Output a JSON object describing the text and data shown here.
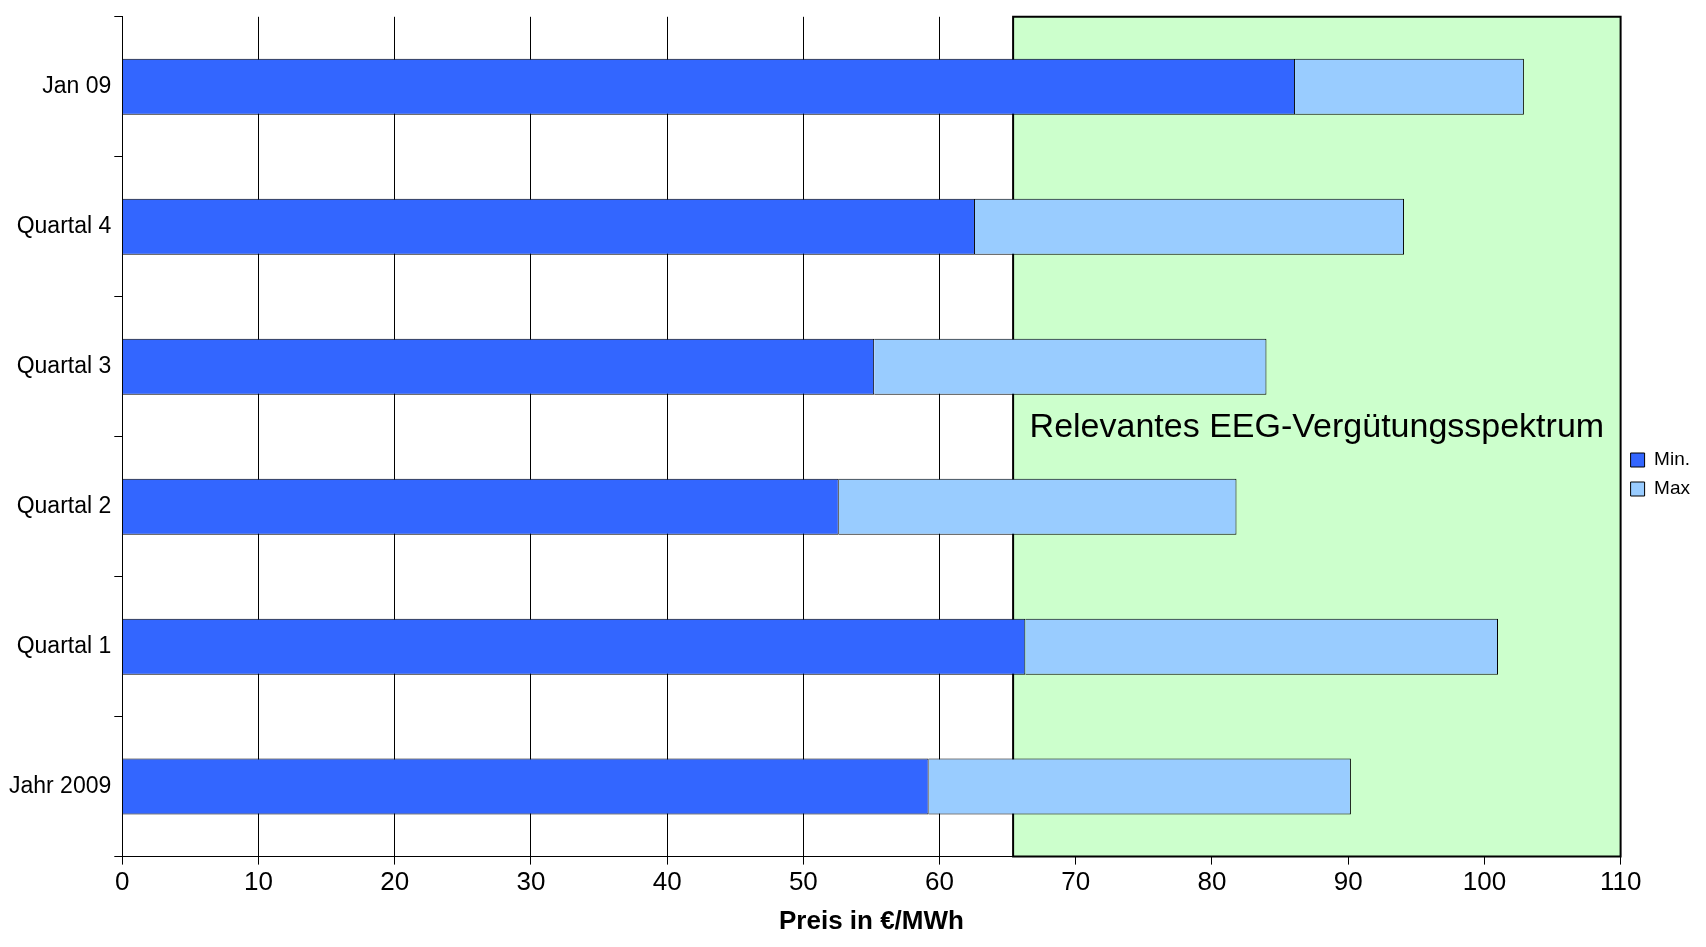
{
  "chart_data": {
    "type": "bar",
    "orientation": "horizontal",
    "stacked": true,
    "xlabel": "Preis in €/MWh",
    "categories": [
      "Jan 09",
      "Quartal 4",
      "Quartal 3",
      "Quartal 2",
      "Quartal 1",
      "Jahr 2009"
    ],
    "series": [
      {
        "name": "Min.",
        "color": "#3366ff",
        "values": [
          86.1,
          62.6,
          55.2,
          52.6,
          66.3,
          59.2
        ]
      },
      {
        "name": "Max",
        "color": "#99ccff",
        "values": [
          16.8,
          31.5,
          28.8,
          29.2,
          34.7,
          31.0
        ]
      }
    ],
    "xlim": [
      0,
      110
    ],
    "xticks": [
      0,
      10,
      20,
      30,
      40,
      50,
      60,
      70,
      80,
      90,
      100,
      110
    ],
    "bands": [
      {
        "axis": "x",
        "from": 65.4,
        "to": 110,
        "label": "Relevantes EEG-Vergütungsspektrum",
        "color": "#ccffcc"
      }
    ],
    "grid": "x",
    "legend": "right"
  }
}
